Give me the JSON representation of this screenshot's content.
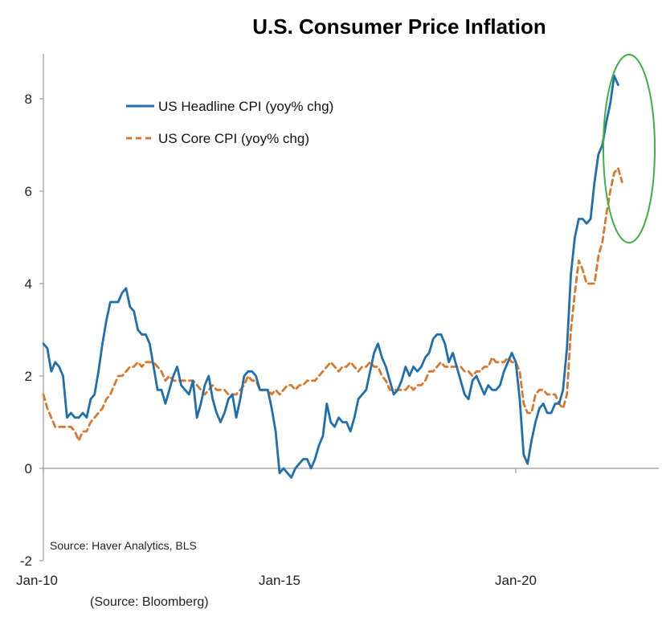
{
  "chart_data": {
    "type": "line",
    "title": "U.S. Consumer Price Inflation",
    "xlabel": "",
    "ylabel": "",
    "x_start": "2010-01",
    "x_ticks": [
      "Jan-10",
      "Jan-15",
      "Jan-20"
    ],
    "y_ticks": [
      "-2",
      "0",
      "2",
      "4",
      "6",
      "8"
    ],
    "ylim": [
      -2,
      9
    ],
    "grid": false,
    "legend_position": "top-left",
    "series": [
      {
        "name": "US Headline CPI (yoy% chg)",
        "color": "#1f6fae",
        "style": "solid",
        "values": [
          2.7,
          2.6,
          2.1,
          2.3,
          2.2,
          2.0,
          1.1,
          1.2,
          1.1,
          1.1,
          1.2,
          1.1,
          1.5,
          1.6,
          2.1,
          2.7,
          3.2,
          3.6,
          3.6,
          3.6,
          3.8,
          3.9,
          3.5,
          3.4,
          3.0,
          2.9,
          2.9,
          2.7,
          2.2,
          1.7,
          1.7,
          1.4,
          1.7,
          2.0,
          2.2,
          1.8,
          1.7,
          1.6,
          1.9,
          1.1,
          1.4,
          1.8,
          2.0,
          1.5,
          1.2,
          1.0,
          1.2,
          1.5,
          1.6,
          1.1,
          1.5,
          2.0,
          2.1,
          2.1,
          2.0,
          1.7,
          1.7,
          1.7,
          1.3,
          0.8,
          -0.1,
          0.0,
          -0.1,
          -0.2,
          0.0,
          0.1,
          0.2,
          0.2,
          0.0,
          0.2,
          0.5,
          0.7,
          1.4,
          1.0,
          0.9,
          1.1,
          1.0,
          1.0,
          0.8,
          1.1,
          1.5,
          1.6,
          1.7,
          2.1,
          2.5,
          2.7,
          2.4,
          2.2,
          1.9,
          1.6,
          1.7,
          1.9,
          2.2,
          2.0,
          2.2,
          2.1,
          2.2,
          2.4,
          2.5,
          2.8,
          2.9,
          2.9,
          2.7,
          2.3,
          2.5,
          2.2,
          1.9,
          1.6,
          1.5,
          1.9,
          2.0,
          1.8,
          1.6,
          1.8,
          1.7,
          1.7,
          1.8,
          2.1,
          2.3,
          2.5,
          2.3,
          1.5,
          0.3,
          0.1,
          0.6,
          1.0,
          1.3,
          1.4,
          1.2,
          1.2,
          1.4,
          1.4,
          1.7,
          2.6,
          4.2,
          5.0,
          5.4,
          5.4,
          5.3,
          5.4,
          6.2,
          6.8,
          7.0,
          7.5,
          7.9,
          8.5,
          8.3
        ]
      },
      {
        "name": "US Core CPI (yoy% chg)",
        "color": "#d9782d",
        "style": "dashed",
        "values": [
          1.6,
          1.3,
          1.1,
          0.9,
          0.9,
          0.9,
          0.9,
          0.9,
          0.8,
          0.6,
          0.8,
          0.8,
          1.0,
          1.1,
          1.2,
          1.3,
          1.5,
          1.6,
          1.8,
          2.0,
          2.0,
          2.1,
          2.2,
          2.2,
          2.3,
          2.2,
          2.3,
          2.3,
          2.3,
          2.2,
          2.1,
          1.9,
          2.0,
          1.9,
          1.9,
          1.9,
          1.9,
          1.9,
          1.9,
          1.8,
          1.7,
          1.6,
          1.7,
          1.8,
          1.7,
          1.7,
          1.7,
          1.6,
          1.6,
          1.6,
          1.7,
          1.8,
          2.0,
          1.9,
          1.9,
          1.7,
          1.7,
          1.7,
          1.6,
          1.7,
          1.6,
          1.7,
          1.8,
          1.8,
          1.7,
          1.8,
          1.8,
          1.9,
          1.9,
          1.9,
          2.0,
          2.1,
          2.2,
          2.3,
          2.2,
          2.1,
          2.2,
          2.2,
          2.3,
          2.2,
          2.1,
          2.2,
          2.2,
          2.3,
          2.2,
          2.2,
          2.0,
          1.9,
          1.7,
          1.7,
          1.7,
          1.7,
          1.7,
          1.8,
          1.7,
          1.8,
          1.8,
          1.9,
          2.1,
          2.1,
          2.2,
          2.3,
          2.2,
          2.2,
          2.2,
          2.2,
          2.2,
          2.1,
          2.1,
          2.0,
          2.1,
          2.1,
          2.2,
          2.2,
          2.4,
          2.3,
          2.3,
          2.3,
          2.4,
          2.3,
          2.3,
          2.1,
          1.4,
          1.2,
          1.2,
          1.6,
          1.7,
          1.7,
          1.6,
          1.6,
          1.6,
          1.4,
          1.3,
          1.6,
          3.0,
          3.8,
          4.5,
          4.3,
          4.0,
          4.0,
          4.0,
          4.6,
          4.9,
          5.5,
          6.0,
          6.4,
          6.5,
          6.2
        ]
      }
    ]
  },
  "annotations": {
    "source_inside": "Source: Haver Analytics, BLS",
    "source_below": "(Source: Bloomberg)",
    "highlight_color": "#3cb043"
  }
}
